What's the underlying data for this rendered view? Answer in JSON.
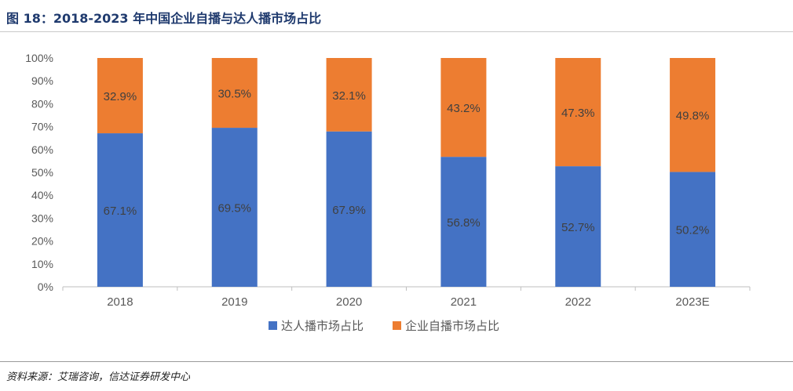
{
  "figure": {
    "title": "图 18：2018-2023 年中国企业自播与达人播市场占比",
    "source": "资料来源：艾瑞咨询，信达证券研发中心"
  },
  "colors": {
    "series_a": "#4472c4",
    "series_b": "#ed7d31",
    "axis": "#bfbfbf",
    "tick_text": "#595959",
    "label_text": "#404040"
  },
  "chart_data": {
    "type": "bar",
    "stacked": true,
    "title": "",
    "xlabel": "",
    "ylabel": "",
    "categories": [
      "2018",
      "2019",
      "2020",
      "2021",
      "2022",
      "2023E"
    ],
    "series": [
      {
        "name": "达人播市场占比",
        "values": [
          67.1,
          69.5,
          67.9,
          56.8,
          52.7,
          50.2
        ],
        "labels": [
          "67.1%",
          "69.5%",
          "67.9%",
          "56.8%",
          "52.7%",
          "50.2%"
        ]
      },
      {
        "name": "企业自播市场占比",
        "values": [
          32.9,
          30.5,
          32.1,
          43.2,
          47.3,
          49.8
        ],
        "labels": [
          "32.9%",
          "30.5%",
          "32.1%",
          "43.2%",
          "47.3%",
          "49.8%"
        ]
      }
    ],
    "ylim": [
      0,
      100
    ],
    "yticks": [
      "0%",
      "10%",
      "20%",
      "30%",
      "40%",
      "50%",
      "60%",
      "70%",
      "80%",
      "90%",
      "100%"
    ],
    "grid": false,
    "legend": "bottom-center"
  }
}
